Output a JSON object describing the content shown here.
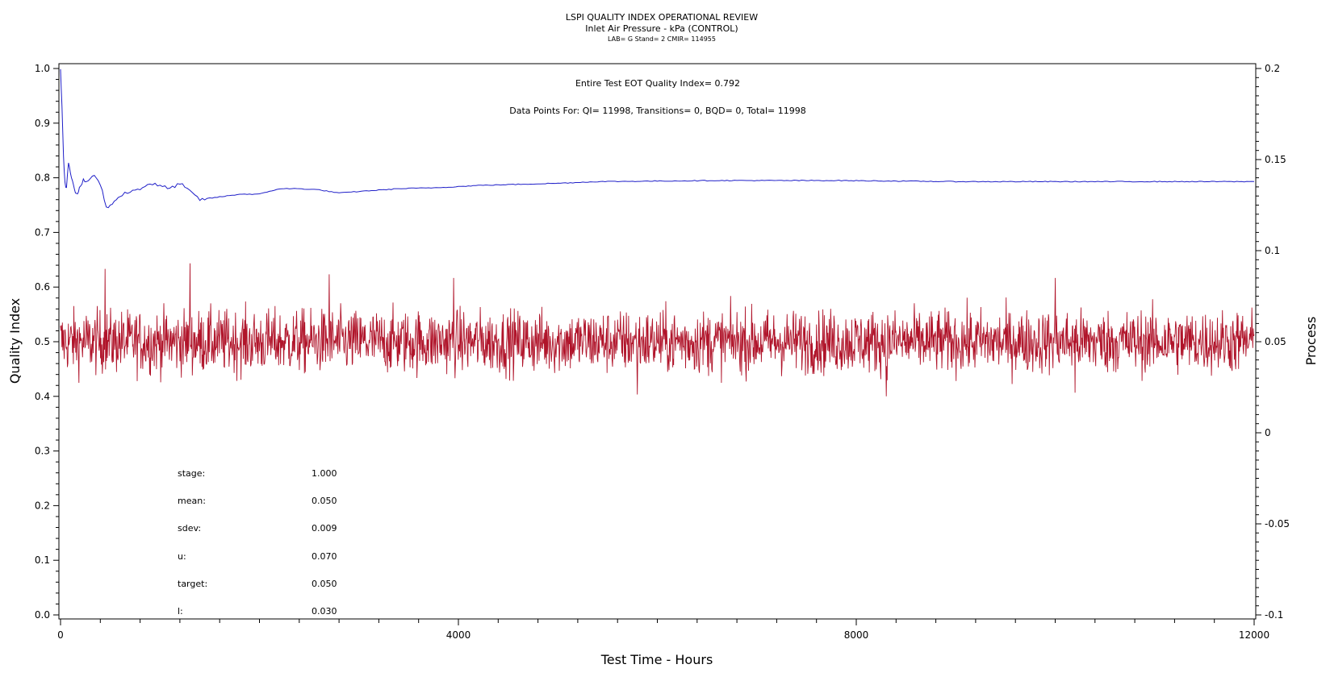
{
  "chart_data": {
    "type": "line",
    "title": "LSPI QUALITY INDEX OPERATIONAL REVIEW",
    "subtitle": "Inlet Air Pressure - kPa (CONTROL)",
    "subtitle2": "LAB= G Stand= 2 CMIR= 114955",
    "xlabel": "Test Time - Hours",
    "ylabel": "Quality Index",
    "y2label": "Process",
    "xlim": [
      0,
      12000
    ],
    "ylim": [
      0.0,
      1.0
    ],
    "y2lim": [
      -0.1,
      0.2
    ],
    "xticks": [
      "0",
      "4000",
      "8000",
      "12000"
    ],
    "yticks": [
      "0.0",
      "0.1",
      "0.2",
      "0.3",
      "0.4",
      "0.5",
      "0.6",
      "0.7",
      "0.8",
      "0.9",
      "1.0"
    ],
    "y2ticks": [
      "-0.1",
      "-0.05",
      "0",
      "0.05",
      "0.1",
      "0.15",
      "0.2"
    ],
    "annotation_qi": "Entire Test EOT Quality Index=   0.792",
    "annotation_points": "Data Points For: QI= 11998, Transitions=     0, BQD=     0, Total= 11998",
    "stats": [
      {
        "label": "stage:",
        "value": "1.000"
      },
      {
        "label": "mean:",
        "value": "0.050"
      },
      {
        "label": "sdev:",
        "value": "0.009"
      },
      {
        "label": "u:",
        "value": "0.070"
      },
      {
        "label": "target:",
        "value": "0.050"
      },
      {
        "label": "l:",
        "value": "0.030"
      }
    ],
    "series": [
      {
        "axis": "left",
        "color": "#1e1ec8",
        "x": [
          0,
          15,
          30,
          45,
          60,
          80,
          100,
          120,
          140,
          160,
          180,
          200,
          230,
          260,
          300,
          340,
          380,
          420,
          460,
          500,
          540,
          580,
          620,
          700,
          800,
          900,
          1000,
          1100,
          1200,
          1300,
          1400,
          1600,
          1800,
          2000,
          2200,
          2400,
          2600,
          2800,
          3000,
          3400,
          3800,
          4200,
          4600,
          5000,
          5400,
          6000,
          6600,
          7200,
          7800,
          8400,
          9000,
          9600,
          10200,
          10800,
          11400,
          12000
        ],
        "values": [
          1.0,
          0.93,
          0.84,
          0.79,
          0.78,
          0.83,
          0.81,
          0.795,
          0.78,
          0.77,
          0.775,
          0.785,
          0.795,
          0.79,
          0.8,
          0.805,
          0.795,
          0.775,
          0.745,
          0.75,
          0.755,
          0.765,
          0.77,
          0.775,
          0.78,
          0.79,
          0.785,
          0.78,
          0.79,
          0.775,
          0.76,
          0.765,
          0.77,
          0.77,
          0.78,
          0.78,
          0.778,
          0.772,
          0.775,
          0.78,
          0.782,
          0.786,
          0.788,
          0.79,
          0.793,
          0.794,
          0.795,
          0.795,
          0.795,
          0.794,
          0.793,
          0.793,
          0.793,
          0.793,
          0.793,
          0.793
        ]
      },
      {
        "axis": "right",
        "color": "#b0142a",
        "description_mean": 0.05,
        "sdev": 0.009,
        "n": 11998,
        "peaks_x": [
          450,
          1300,
          2700,
          3950,
          5800,
          8300,
          10000,
          10200
        ],
        "peaks_y": [
          0.09,
          0.093,
          0.087,
          0.085,
          0.021,
          0.02,
          0.085,
          0.022
        ]
      }
    ]
  }
}
